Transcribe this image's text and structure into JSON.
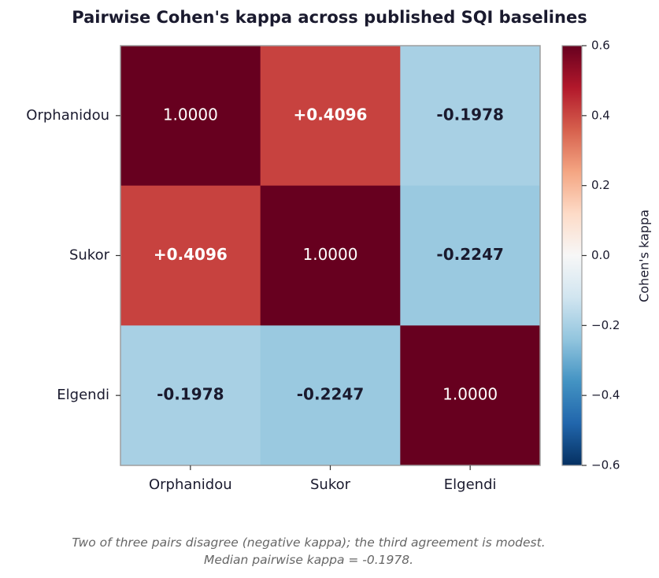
{
  "chart_data": {
    "type": "heatmap",
    "title": "Pairwise Cohen's kappa across published SQI baselines",
    "rows": [
      "Orphanidou",
      "Sukor",
      "Elgendi"
    ],
    "columns": [
      "Orphanidou",
      "Sukor",
      "Elgendi"
    ],
    "values": [
      [
        1.0,
        0.4096,
        -0.1978
      ],
      [
        0.4096,
        1.0,
        -0.2247
      ],
      [
        -0.1978,
        -0.2247,
        1.0
      ]
    ],
    "cell_labels": [
      [
        "1.0000",
        "+0.4096",
        "-0.1978"
      ],
      [
        "+0.4096",
        "1.0000",
        "-0.2247"
      ],
      [
        "-0.1978",
        "-0.2247",
        "1.0000"
      ]
    ],
    "colorbar": {
      "label": "Cohen's kappa",
      "range": [
        -0.6,
        0.6
      ],
      "ticks": [
        "0.6",
        "0.4",
        "0.2",
        "0.0",
        "−0.2",
        "−0.4",
        "−0.6"
      ],
      "tick_values": [
        0.6,
        0.4,
        0.2,
        0.0,
        -0.2,
        -0.4,
        -0.6
      ],
      "colormap": "RdBu_r"
    },
    "grid": false
  },
  "caption": {
    "line1": "Two of three pairs disagree (negative kappa); the third agreement is modest.",
    "line2": "Median pairwise kappa = -0.1978."
  },
  "colors": {
    "title": "#1a1a2e",
    "caption": "#666666",
    "axis": "#9e9e9e"
  }
}
